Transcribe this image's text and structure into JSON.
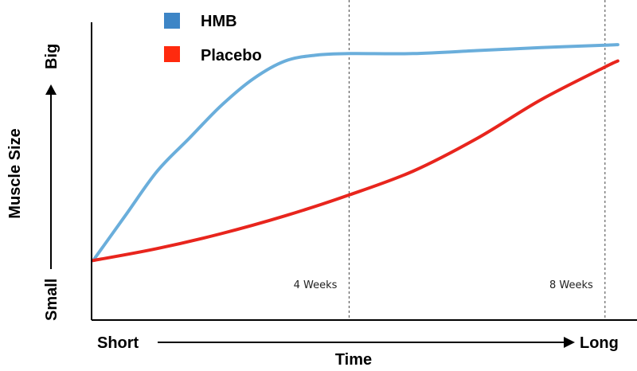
{
  "chart_data": {
    "type": "line",
    "title": "",
    "xlabel": "Time",
    "ylabel": "Muscle Size",
    "x_axis": {
      "start_label": "Short",
      "end_label": "Long"
    },
    "y_axis": {
      "start_label": "Small",
      "end_label": "Big"
    },
    "xlim": [
      0,
      8.5
    ],
    "ylim": [
      0,
      100
    ],
    "grid": false,
    "legend_position": "top-left",
    "markers": [
      {
        "x": 4,
        "label": "4 Weeks"
      },
      {
        "x": 8,
        "label": "8 Weeks"
      }
    ],
    "series": [
      {
        "name": "HMB",
        "color": "#6aaedb",
        "legend_color": "#3d85c6",
        "x": [
          0,
          0.5,
          1,
          1.5,
          2,
          2.5,
          3,
          3.5,
          4,
          5,
          6,
          7,
          8,
          8.2
        ],
        "y": [
          20,
          35,
          50,
          61,
          72,
          81,
          87,
          89,
          89.5,
          89.5,
          90.5,
          91.5,
          92.3,
          92.5
        ]
      },
      {
        "name": "Placebo",
        "color": "#e8251d",
        "legend_color": "#ff2a0e",
        "x": [
          0,
          1,
          2,
          3,
          4,
          5,
          6,
          7,
          8,
          8.2
        ],
        "y": [
          20,
          24,
          29,
          35,
          42,
          50,
          61,
          74,
          85,
          87
        ]
      }
    ]
  }
}
